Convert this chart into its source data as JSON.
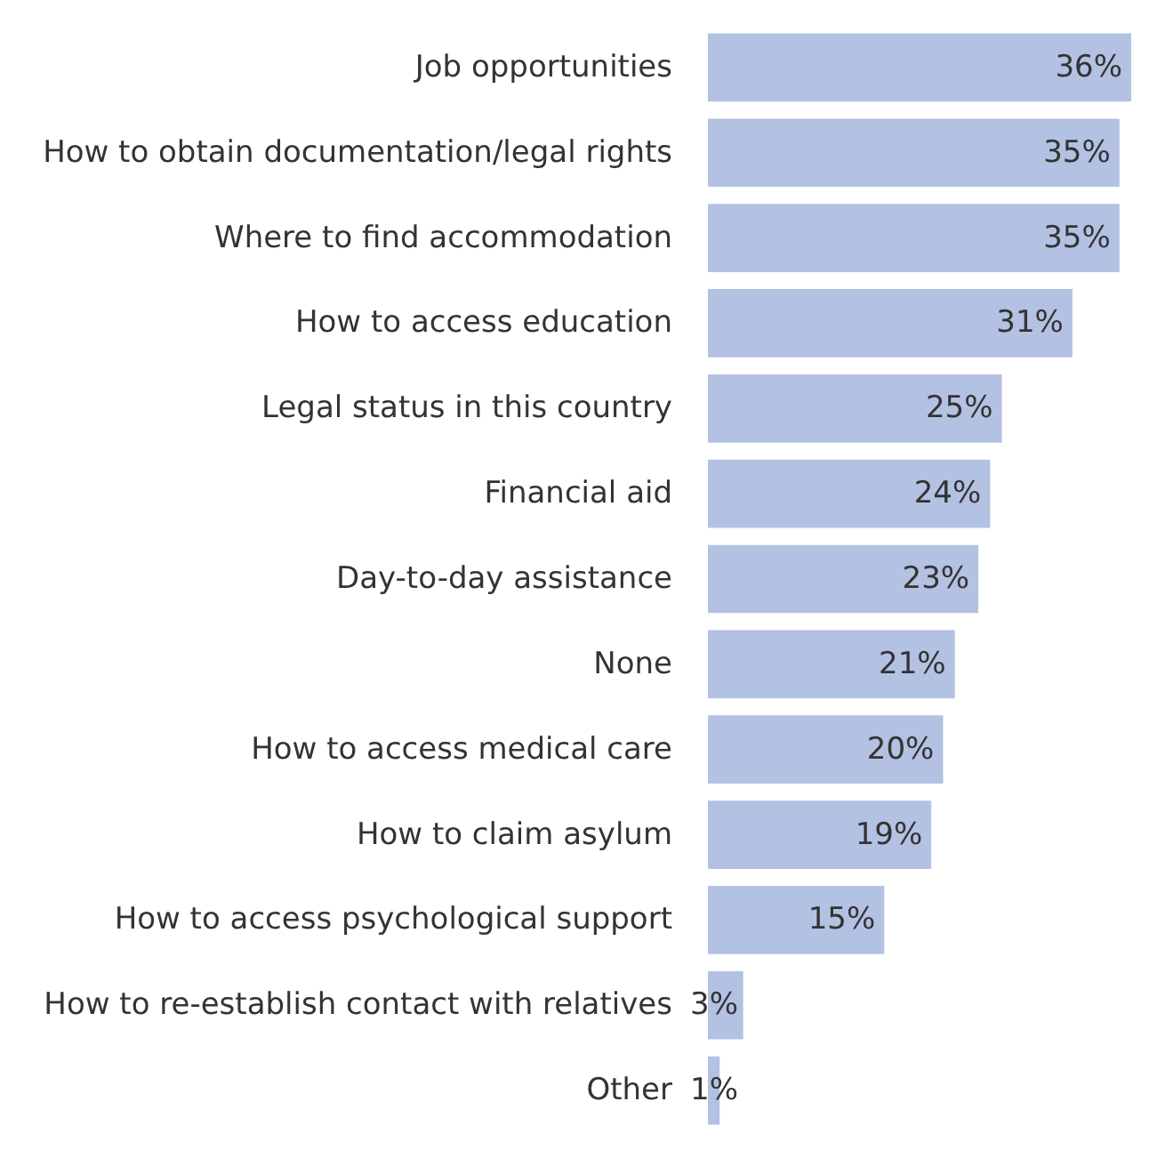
{
  "chart_data": {
    "type": "bar",
    "orientation": "horizontal",
    "categories": [
      "Job opportunities",
      "How to obtain documentation/legal rights",
      "Where to find accommodation",
      "How to access education",
      "Legal status in this country",
      "Financial aid",
      "Day-to-day assistance",
      "None",
      "How to access medical care",
      "How to claim asylum",
      "How to access psychological support",
      "How to re-establish contact with relatives",
      "Other"
    ],
    "values": [
      36,
      35,
      35,
      31,
      25,
      24,
      23,
      21,
      20,
      19,
      15,
      3,
      1
    ],
    "value_labels": [
      "36%",
      "35%",
      "35%",
      "31%",
      "25%",
      "24%",
      "23%",
      "21%",
      "20%",
      "19%",
      "15%",
      "3%",
      "1%"
    ],
    "color": "#b3c1e3"
  }
}
